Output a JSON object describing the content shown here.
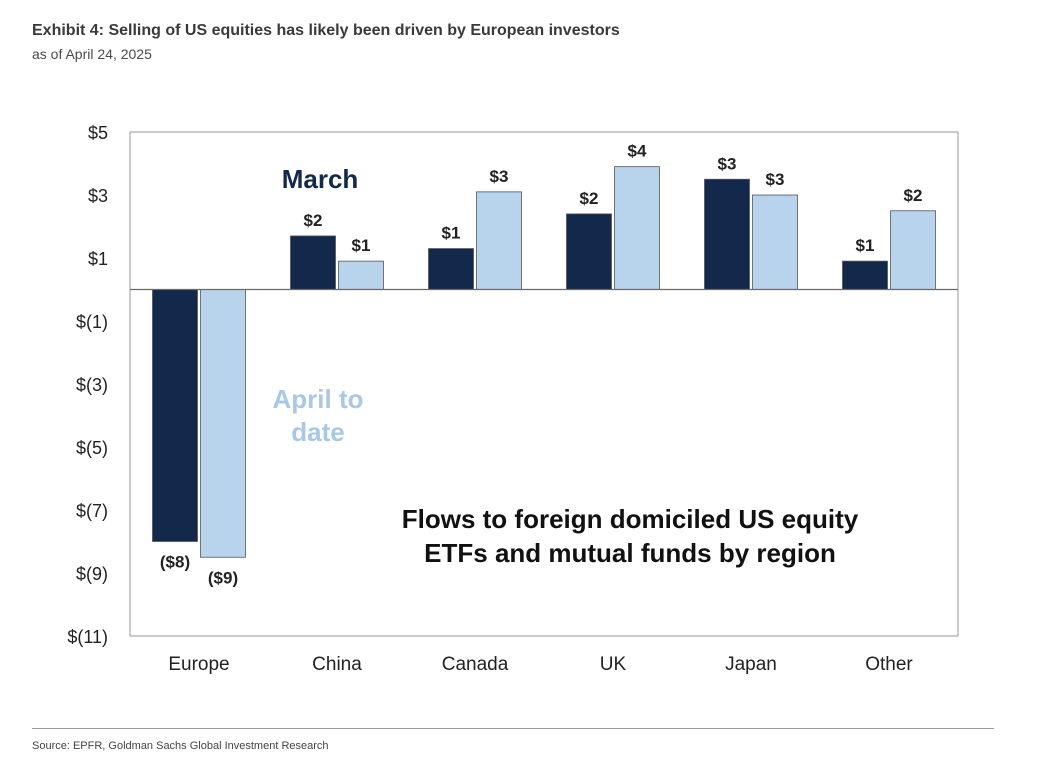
{
  "header": {
    "title": "Exhibit 4: Selling of US equities has likely been driven by European investors",
    "subtitle": "as of April 24, 2025"
  },
  "footer": {
    "source": "Source: EPFR, Goldman Sachs Global Investment Research"
  },
  "chart_data": {
    "type": "bar",
    "title": "Flows to foreign domiciled US equity ETFs and mutual funds by region",
    "title_lines": [
      "Flows to foreign domiciled US equity",
      "ETFs and mutual funds by region"
    ],
    "xlabel": "",
    "ylabel": "",
    "ylim": [
      -11,
      5
    ],
    "yticks": [
      5,
      3,
      1,
      -1,
      -3,
      -5,
      -7,
      -9,
      -11
    ],
    "ytick_labels": [
      "$5",
      "$3",
      "$1",
      "$(1)",
      "$(3)",
      "$(5)",
      "$(7)",
      "$(9)",
      "$(11)"
    ],
    "categories": [
      "Europe",
      "China",
      "Canada",
      "UK",
      "Japan",
      "Other"
    ],
    "series": [
      {
        "name": "March",
        "color": "#13294b",
        "values": [
          -8.0,
          1.7,
          1.3,
          2.4,
          3.5,
          0.9
        ],
        "labels": [
          "($8)",
          "$2",
          "$1",
          "$2",
          "$3",
          "$1"
        ]
      },
      {
        "name": "April to date",
        "name_lines": [
          "April to",
          "date"
        ],
        "color": "#b8d3ec",
        "values": [
          -8.5,
          0.9,
          3.1,
          3.9,
          3.0,
          2.5
        ],
        "labels": [
          "($9)",
          "$1",
          "$3",
          "$4",
          "$3",
          "$2"
        ]
      }
    ],
    "grid": false,
    "legend": "inline"
  }
}
